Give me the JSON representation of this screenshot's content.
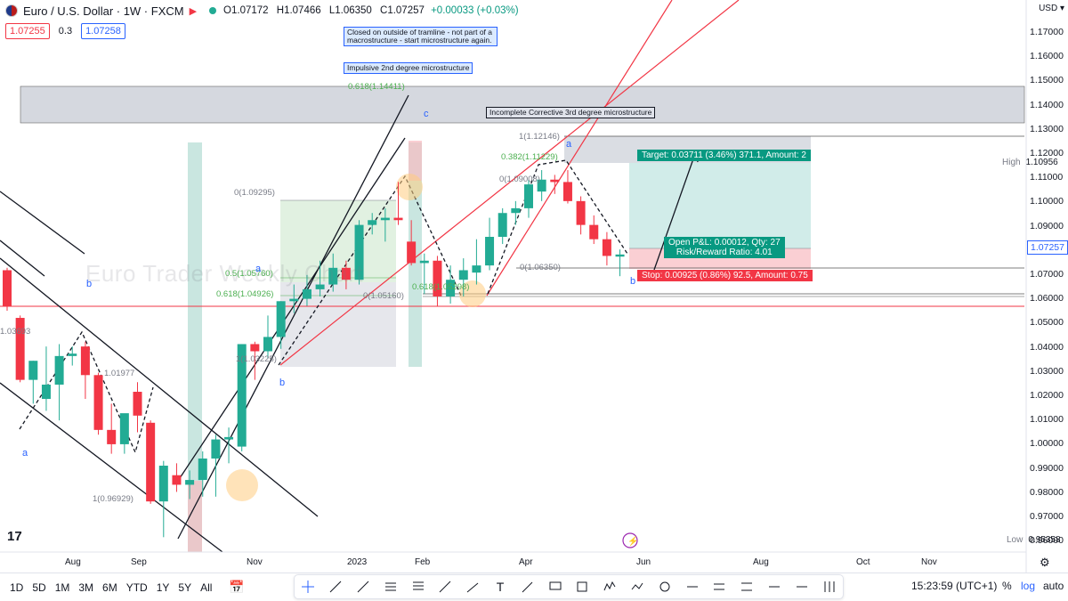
{
  "header": {
    "symbol": "Euro / U.S. Dollar · 1W · FXCM",
    "open": "O1.07172",
    "high": "H1.07466",
    "low": "L1.06350",
    "close": "C1.07257",
    "change": "+0.00033 (+0.03%)",
    "sell_price": "1.07255",
    "spread": "0.3",
    "buy_price": "1.07258",
    "currency": "USD"
  },
  "price_axis": {
    "labels": [
      "1.17000",
      "1.16000",
      "1.15000",
      "1.14000",
      "1.13000",
      "1.12000",
      "1.11000",
      "1.10000",
      "1.09000",
      "1.08000",
      "1.07000",
      "1.06000",
      "1.05000",
      "1.04000",
      "1.03000",
      "1.02000",
      "1.01000",
      "1.00000",
      "0.99000",
      "0.98000",
      "0.97000",
      "0.96000"
    ],
    "last_price": "1.07257",
    "high_label": "High",
    "high_value": "1.10956",
    "low_label": "Low",
    "low_value": "0.95358"
  },
  "time_axis": {
    "labels": [
      "Aug",
      "Sep",
      "Nov",
      "2023",
      "Feb",
      "Apr",
      "Jun",
      "Aug",
      "Oct",
      "Nov"
    ]
  },
  "annotations": {
    "note1": "Closed on outside of tramline - not part of a macrostructure - start microstructure again.",
    "note2": "Impulsive 2nd degree microstructure",
    "note3": "Incomplete Corrective 3rd degree microstructure",
    "watermark": "Euro Trader Weekly Chart",
    "fib_0618_top": "0.618(1.14411)",
    "fib_1_top": "1(1.12146)",
    "fib_0382": "0.382(1.11229)",
    "fib_0_09295": "0(1.09295)",
    "fib_05": "0.5(1.05760)",
    "fib_0618_mid": "0.618(1.04926)",
    "fib_1_03225": "1(1.03225)",
    "fib_0_05160": "0(1.05160)",
    "fib_0618_low": "0.618(1.05298)",
    "fib_09008": "0(1.09008)",
    "fib_0_06350": "0(1.06350)",
    "fib_1_096929": "1(0.96929)",
    "fib_1_019": "1.01977",
    "fib_1_03": "1.03693",
    "wave_a1": "a",
    "wave_b1": "b",
    "wave_a2": "a",
    "wave_b2": "b",
    "wave_c": "c",
    "wave_a3": "a",
    "wave_b3": "b",
    "target": "Target: 0.03711 (3.46%) 371.1, Amount: 2",
    "open_pl": "Open P&L: 0.00012, Qty: 27",
    "rr": "Risk/Reward Ratio: 4.01",
    "stop": "Stop: 0.00925 (0.86%) 92.5, Amount: 0.75"
  },
  "bottom_bar": {
    "timeframes": [
      "1D",
      "5D",
      "1M",
      "3M",
      "6M",
      "YTD",
      "1Y",
      "5Y",
      "All"
    ],
    "clock": "15:23:59 (UTC+1)",
    "percent": "%",
    "log": "log",
    "auto": "auto"
  },
  "colors": {
    "up": "#22ab94",
    "down": "#f23645",
    "accent": "#2962ff",
    "fib_green": "#4caf50"
  },
  "chart_data": {
    "type": "candlestick",
    "title": "Euro / U.S. Dollar · 1W · FXCM",
    "ylim": [
      0.953,
      1.176
    ],
    "candles": [
      {
        "o": 1.066,
        "h": 1.067,
        "l": 1.049,
        "c": 1.051
      },
      {
        "o": 1.046,
        "h": 1.047,
        "l": 1.019,
        "c": 1.02
      },
      {
        "o": 1.02,
        "h": 1.028,
        "l": 1.01,
        "c": 1.028
      },
      {
        "o": 1.012,
        "h": 1.034,
        "l": 1.007,
        "c": 1.018
      },
      {
        "o": 1.018,
        "h": 1.035,
        "l": 1.003,
        "c": 1.03
      },
      {
        "o": 1.03,
        "h": 1.034,
        "l": 1.026,
        "c": 1.031
      },
      {
        "o": 1.034,
        "h": 1.036,
        "l": 1.012,
        "c": 1.022
      },
      {
        "o": 1.022,
        "h": 1.023,
        "l": 0.997,
        "c": 0.999
      },
      {
        "o": 0.999,
        "h": 1.01,
        "l": 0.989,
        "c": 0.993
      },
      {
        "o": 0.993,
        "h": 1.004,
        "l": 0.989,
        "c": 1.006
      },
      {
        "o": 1.015,
        "h": 1.019,
        "l": 0.998,
        "c": 1.005
      },
      {
        "o": 1.002,
        "h": 1.003,
        "l": 0.968,
        "c": 0.969
      },
      {
        "o": 0.969,
        "h": 0.986,
        "l": 0.954,
        "c": 0.984
      },
      {
        "o": 0.98,
        "h": 0.985,
        "l": 0.973,
        "c": 0.976
      },
      {
        "o": 0.976,
        "h": 0.982,
        "l": 0.97,
        "c": 0.978
      },
      {
        "o": 0.978,
        "h": 0.99,
        "l": 0.971,
        "c": 0.987
      },
      {
        "o": 0.987,
        "h": 0.997,
        "l": 0.971,
        "c": 0.995
      },
      {
        "o": 0.995,
        "h": 1.0,
        "l": 0.985,
        "c": 0.996
      },
      {
        "o": 0.992,
        "h": 1.035,
        "l": 0.99,
        "c": 1.035
      },
      {
        "o": 1.035,
        "h": 1.036,
        "l": 1.02,
        "c": 1.032
      },
      {
        "o": 1.032,
        "h": 1.047,
        "l": 1.029,
        "c": 1.038
      },
      {
        "o": 1.038,
        "h": 1.053,
        "l": 1.033,
        "c": 1.053
      },
      {
        "o": 1.053,
        "h": 1.06,
        "l": 1.048,
        "c": 1.054
      },
      {
        "o": 1.054,
        "h": 1.064,
        "l": 1.051,
        "c": 1.058
      },
      {
        "o": 1.058,
        "h": 1.07,
        "l": 1.055,
        "c": 1.06
      },
      {
        "o": 1.06,
        "h": 1.073,
        "l": 1.057,
        "c": 1.067
      },
      {
        "o": 1.067,
        "h": 1.07,
        "l": 1.058,
        "c": 1.062
      },
      {
        "o": 1.062,
        "h": 1.087,
        "l": 1.06,
        "c": 1.085
      },
      {
        "o": 1.085,
        "h": 1.09,
        "l": 1.081,
        "c": 1.087
      },
      {
        "o": 1.087,
        "h": 1.092,
        "l": 1.078,
        "c": 1.088
      },
      {
        "o": 1.088,
        "h": 1.103,
        "l": 1.085,
        "c": 1.087
      },
      {
        "o": 1.078,
        "h": 1.087,
        "l": 1.068,
        "c": 1.069
      },
      {
        "o": 1.069,
        "h": 1.073,
        "l": 1.056,
        "c": 1.07
      },
      {
        "o": 1.07,
        "h": 1.072,
        "l": 1.051,
        "c": 1.055
      },
      {
        "o": 1.055,
        "h": 1.068,
        "l": 1.052,
        "c": 1.062
      },
      {
        "o": 1.062,
        "h": 1.071,
        "l": 1.055,
        "c": 1.066
      },
      {
        "o": 1.065,
        "h": 1.079,
        "l": 1.06,
        "c": 1.068
      },
      {
        "o": 1.068,
        "h": 1.088,
        "l": 1.066,
        "c": 1.08
      },
      {
        "o": 1.08,
        "h": 1.092,
        "l": 1.077,
        "c": 1.09
      },
      {
        "o": 1.09,
        "h": 1.095,
        "l": 1.085,
        "c": 1.092
      },
      {
        "o": 1.092,
        "h": 1.104,
        "l": 1.088,
        "c": 1.102
      },
      {
        "o": 1.099,
        "h": 1.108,
        "l": 1.095,
        "c": 1.104
      },
      {
        "o": 1.104,
        "h": 1.106,
        "l": 1.098,
        "c": 1.103
      },
      {
        "o": 1.103,
        "h": 1.108,
        "l": 1.094,
        "c": 1.095
      },
      {
        "o": 1.095,
        "h": 1.097,
        "l": 1.081,
        "c": 1.085
      },
      {
        "o": 1.085,
        "h": 1.089,
        "l": 1.077,
        "c": 1.079
      },
      {
        "o": 1.079,
        "h": 1.082,
        "l": 1.068,
        "c": 1.072
      },
      {
        "o": 1.0717,
        "h": 1.0747,
        "l": 1.0635,
        "c": 1.0726
      }
    ]
  }
}
